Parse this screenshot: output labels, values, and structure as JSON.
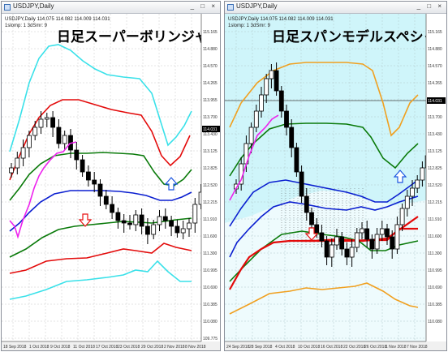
{
  "windows": [
    {
      "window_title": "USDJPY,Daily",
      "chart_title": "日足スーパーボリンジャー",
      "info_line_1": "USDJPY,Daily  114.075 114.082 114.009 114.031",
      "info_line_2": "1slomp: 1 3dSmr: 9",
      "price_tag": "114.031",
      "y_ticks": [
        "115.165",
        "114.880",
        "114.570",
        "114.265",
        "113.955",
        "113.700",
        "113.430",
        "113.125",
        "112.825",
        "112.520",
        "112.215",
        "111.910",
        "111.600",
        "111.300",
        "110.995",
        "110.690",
        "110.385",
        "110.080",
        "109.775"
      ],
      "x_ticks": [
        "18 Sep 2018",
        "1 Oct 2018",
        "9 Oct 2018",
        "11 Oct 2018",
        "17 Oct 2018",
        "23 Oct 2018",
        "29 Oct 2018",
        "2 Nov 2018",
        "8 Nov 2018"
      ],
      "controls": "_ □ ×"
    },
    {
      "window_title": "USDJPY,Daily",
      "chart_title": "日足スパンモデルスペシャル",
      "info_line_1": "USDJPY,Daily  114.075 114.082 114.009 114.031",
      "info_line_2": "1slomp: 1 3dSmr: 9",
      "price_tag": "114.031",
      "y_ticks": [
        "115.165",
        "114.880",
        "114.570",
        "114.265",
        "113.955",
        "113.700",
        "113.430",
        "113.125",
        "112.825",
        "112.520",
        "112.215",
        "111.910",
        "111.600",
        "111.300",
        "110.995",
        "110.690",
        "110.385",
        "110.080"
      ],
      "x_ticks": [
        "24 Sep 2018",
        "28 Sep 2018",
        "4 Oct 2018",
        "10 Oct 2018",
        "16 Oct 2018",
        "22 Oct 2018",
        "26 Oct 2018",
        "1 Nov 2018",
        "7 Nov 2018"
      ],
      "controls": "_ □ ×"
    }
  ],
  "colors": {
    "candle_up": "#ffffff",
    "candle_down": "#000000",
    "band_3": "#39e1e9",
    "band_2": "#e30a0a",
    "band_1": "#0a7a0a",
    "middle": "#0b1fd0",
    "lagging": "#ee22ee",
    "span_cloud": "#bff2f8",
    "span_orange": "#f0a020",
    "arrow_down": "#e81010",
    "arrow_up": "#1a55e0"
  }
}
